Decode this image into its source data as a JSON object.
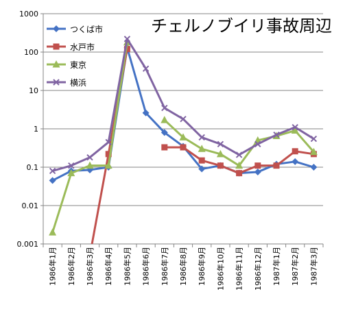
{
  "chart_data": {
    "type": "line",
    "title": "チェルノブイリ事故周辺",
    "y_scale": "log",
    "ylim": [
      0.001,
      1000
    ],
    "y_ticks": [
      "0.001",
      "0.01",
      "0.1",
      "1",
      "10",
      "100",
      "1000"
    ],
    "categories": [
      "1986年1月",
      "1986年2月",
      "1986年3月",
      "1986年4月",
      "1986年5月",
      "1986年6月",
      "1986年7月",
      "1986年8月",
      "1986年9月",
      "1986年10月",
      "1986年11月",
      "1986年12月",
      "1987年1月",
      "1987年2月",
      "1987年3月"
    ],
    "grid": "horizontal major",
    "legend_position": "top-left",
    "series": [
      {
        "name": "つくば市",
        "color": "#4472C4",
        "marker": "diamond",
        "values": [
          0.045,
          0.08,
          0.085,
          0.1,
          130,
          2.6,
          0.8,
          0.35,
          0.09,
          0.11,
          0.07,
          0.075,
          0.12,
          0.14,
          0.1
        ]
      },
      {
        "name": "水戸市",
        "color": "#C0504D",
        "marker": "square",
        "values": [
          null,
          null,
          0.0005,
          0.22,
          120,
          null,
          0.33,
          0.33,
          0.15,
          0.11,
          0.07,
          0.11,
          0.11,
          0.26,
          0.22
        ]
      },
      {
        "name": "東京",
        "color": "#9BBB59",
        "marker": "triangle",
        "values": [
          0.002,
          0.07,
          0.11,
          0.11,
          180,
          null,
          1.7,
          0.6,
          0.3,
          0.22,
          0.11,
          0.5,
          0.65,
          0.9,
          0.25
        ]
      },
      {
        "name": "横浜",
        "color": "#8064A2",
        "marker": "x",
        "values": [
          0.08,
          0.11,
          0.18,
          0.45,
          220,
          37,
          3.5,
          1.8,
          0.6,
          0.4,
          0.21,
          0.4,
          0.7,
          1.1,
          0.55
        ]
      }
    ]
  }
}
